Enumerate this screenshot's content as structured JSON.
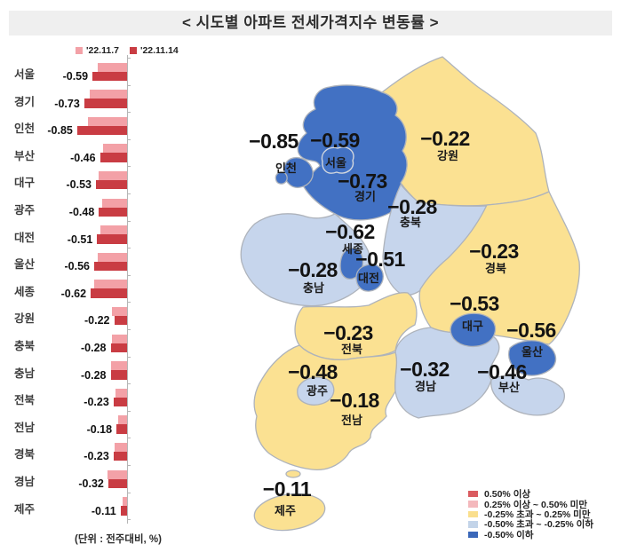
{
  "title": "< 시도별 아파트 전세가격지수 변동률 >",
  "unit_note": "(단위 : 전주대비, %)",
  "colors": {
    "banner_bg": "#efefef",
    "bar_prev": "#f3a1a7",
    "bar_curr": "#c93c43",
    "map_dark_blue": "#4271c3",
    "map_light_blue": "#c6d5ec",
    "map_yellow": "#fbe192",
    "legend_red": "#da5b60",
    "legend_pink": "#f4b8bc",
    "legend_yellow": "#fadf8d",
    "legend_light_blue": "#c3d4e9",
    "legend_dark_blue": "#3a67b9"
  },
  "bar_legend": {
    "prev_label": "'22.11.7",
    "curr_label": "'22.11.14"
  },
  "chart_data": {
    "type": "bar",
    "orientation": "horizontal",
    "title": "시도별 아파트 전세가격지수 변동률",
    "unit": "전주대비, %",
    "categories": [
      "서울",
      "경기",
      "인천",
      "부산",
      "대구",
      "광주",
      "대전",
      "울산",
      "세종",
      "강원",
      "충북",
      "충남",
      "전북",
      "전남",
      "경북",
      "경남",
      "제주"
    ],
    "series": [
      {
        "name": "'22.11.7",
        "color": "#f3a1a7",
        "values": [
          -0.5,
          -0.64,
          -0.66,
          -0.41,
          -0.48,
          -0.43,
          -0.45,
          -0.5,
          -0.56,
          -0.26,
          -0.26,
          -0.27,
          -0.2,
          -0.15,
          -0.21,
          -0.33,
          -0.07
        ]
      },
      {
        "name": "'22.11.14",
        "color": "#c93c43",
        "values": [
          -0.59,
          -0.73,
          -0.85,
          -0.46,
          -0.53,
          -0.48,
          -0.51,
          -0.56,
          -0.62,
          -0.22,
          -0.28,
          -0.28,
          -0.23,
          -0.18,
          -0.23,
          -0.32,
          -0.11
        ]
      }
    ],
    "value_labels_series": "'22.11.14",
    "xlim": [
      -1.0,
      0
    ],
    "grid": false,
    "legend_position": "top-left"
  },
  "map": {
    "regions": [
      {
        "name": "인천",
        "value": "−0.85",
        "category": "dark-blue"
      },
      {
        "name": "서울",
        "value": "−0.59",
        "category": "dark-blue"
      },
      {
        "name": "경기",
        "value": "−0.73",
        "category": "dark-blue"
      },
      {
        "name": "강원",
        "value": "−0.22",
        "category": "yellow"
      },
      {
        "name": "충북",
        "value": "−0.28",
        "category": "light-blue"
      },
      {
        "name": "세종",
        "value": "−0.62",
        "category": "dark-blue"
      },
      {
        "name": "대전",
        "value": "−0.51",
        "category": "dark-blue"
      },
      {
        "name": "충남",
        "value": "−0.28",
        "category": "light-blue"
      },
      {
        "name": "경북",
        "value": "−0.23",
        "category": "yellow"
      },
      {
        "name": "대구",
        "value": "−0.53",
        "category": "dark-blue"
      },
      {
        "name": "울산",
        "value": "−0.56",
        "category": "dark-blue"
      },
      {
        "name": "부산",
        "value": "−0.46",
        "category": "light-blue"
      },
      {
        "name": "경남",
        "value": "−0.32",
        "category": "light-blue"
      },
      {
        "name": "전북",
        "value": "−0.23",
        "category": "yellow"
      },
      {
        "name": "광주",
        "value": "−0.48",
        "category": "light-blue"
      },
      {
        "name": "전남",
        "value": "−0.18",
        "category": "yellow"
      },
      {
        "name": "제주",
        "value": "−0.11",
        "category": "yellow"
      }
    ],
    "legend": [
      {
        "label": "0.50% 이상",
        "color": "#da5b60"
      },
      {
        "label": "0.25% 이상 ~ 0.50% 미만",
        "color": "#f4b8bc"
      },
      {
        "label": "-0.25% 초과 ~ 0.25% 미만",
        "color": "#fadf8d"
      },
      {
        "label": "-0.50% 초과 ~ -0.25% 이하",
        "color": "#c3d4e9"
      },
      {
        "label": "-0.50% 이하",
        "color": "#3a67b9"
      }
    ]
  }
}
